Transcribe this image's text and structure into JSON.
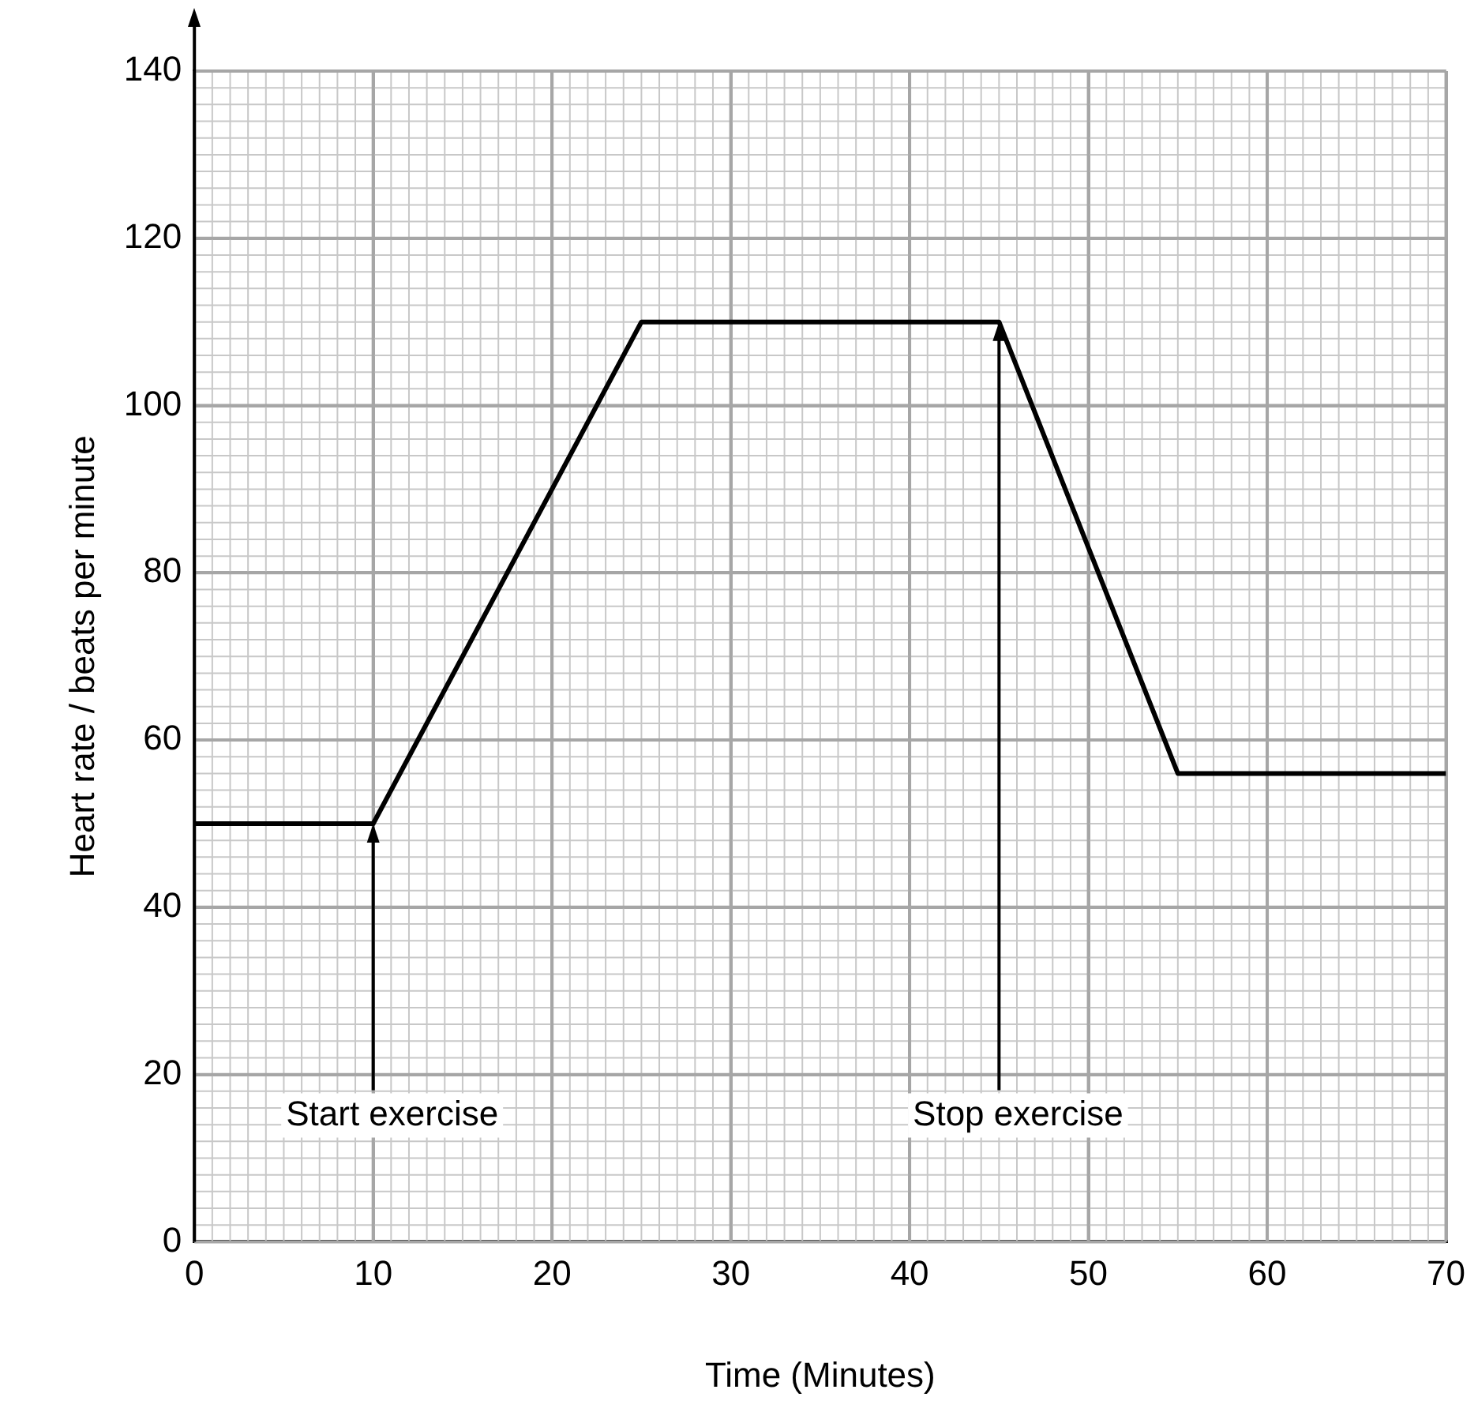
{
  "chart_data": {
    "type": "line",
    "xlabel": "Time (Minutes)",
    "ylabel": "Heart rate / beats per minute",
    "x": [
      0,
      10,
      25,
      45,
      55,
      70
    ],
    "series": [
      {
        "color": "#000000",
        "values": [
          50,
          50,
          110,
          110,
          56,
          56
        ]
      }
    ],
    "xlim": [
      0,
      70
    ],
    "xticks": [
      0,
      10,
      20,
      30,
      40,
      50,
      60,
      70
    ],
    "ylim": [
      0,
      140
    ],
    "yticks": [
      0,
      20,
      40,
      60,
      80,
      100,
      120,
      140
    ],
    "grid": true,
    "legend": false,
    "marker": "none",
    "line_style": "solid",
    "annotations": [
      {
        "text": "Start exercise",
        "x": 10,
        "y": 50
      },
      {
        "text": "Stop exercise",
        "x": 45,
        "y": 110
      }
    ]
  }
}
